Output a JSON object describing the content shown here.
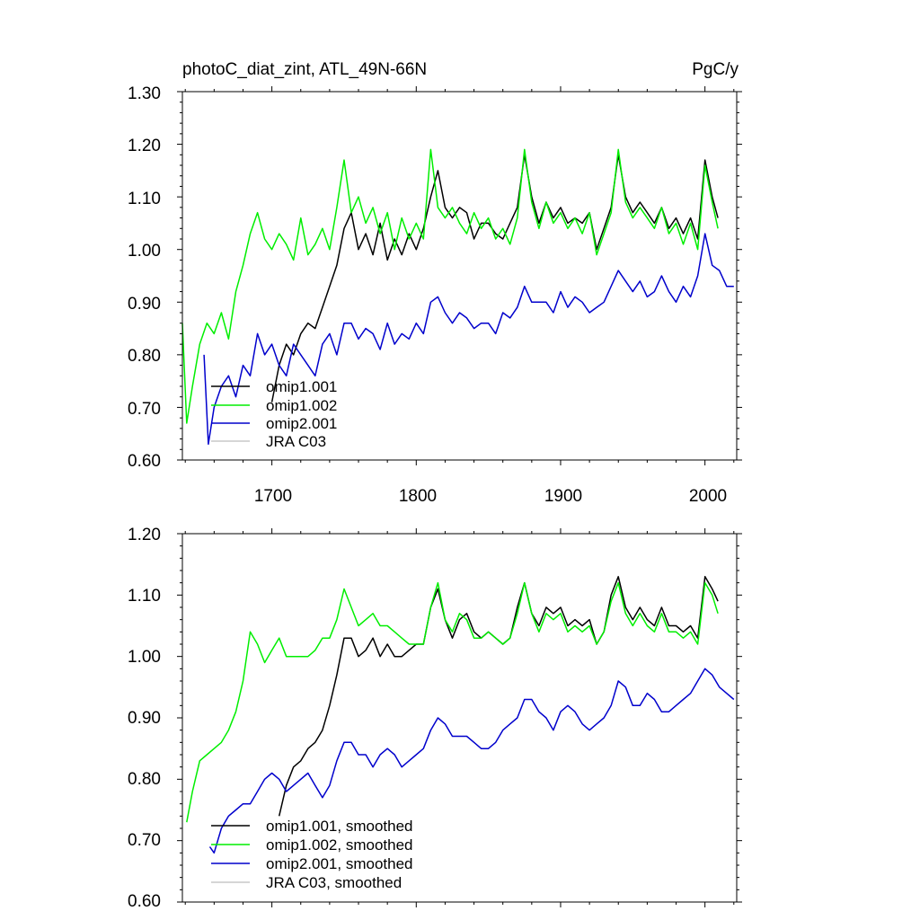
{
  "chart_data": [
    {
      "type": "line",
      "title": "photoC_diat_zint, ATL_49N-66N",
      "units": "PgC/y",
      "xlabel": "",
      "ylabel": "",
      "xlim": [
        1638,
        2022
      ],
      "ylim": [
        0.6,
        1.3
      ],
      "x_ticks": [
        1700,
        1800,
        1900,
        2000
      ],
      "x_tick_labels": [
        "1700",
        "1800",
        "1900",
        "2000"
      ],
      "y_ticks": [
        0.6,
        0.7,
        0.8,
        0.9,
        1.0,
        1.1,
        1.2,
        1.3
      ],
      "y_tick_labels": [
        "0.60",
        "0.70",
        "0.80",
        "0.90",
        "1.00",
        "1.10",
        "1.20",
        "1.30"
      ],
      "grid": false,
      "legend_position": "bottom-left",
      "series": [
        {
          "name": "omip1.001",
          "color": "#000000",
          "x": [
            1700,
            1705,
            1710,
            1715,
            1720,
            1725,
            1730,
            1735,
            1740,
            1745,
            1750,
            1755,
            1760,
            1765,
            1770,
            1775,
            1780,
            1785,
            1790,
            1795,
            1800,
            1805,
            1810,
            1815,
            1820,
            1825,
            1830,
            1835,
            1840,
            1845,
            1850,
            1855,
            1860,
            1865,
            1870,
            1875,
            1880,
            1885,
            1890,
            1895,
            1900,
            1905,
            1910,
            1915,
            1920,
            1925,
            1930,
            1935,
            1940,
            1945,
            1950,
            1955,
            1960,
            1965,
            1970,
            1975,
            1980,
            1985,
            1990,
            1995,
            2000,
            2005,
            2009
          ],
          "values": [
            0.71,
            0.78,
            0.82,
            0.8,
            0.84,
            0.86,
            0.85,
            0.89,
            0.93,
            0.97,
            1.04,
            1.07,
            1.0,
            1.03,
            0.99,
            1.05,
            0.98,
            1.02,
            0.99,
            1.03,
            1.0,
            1.04,
            1.1,
            1.15,
            1.08,
            1.06,
            1.08,
            1.07,
            1.02,
            1.05,
            1.05,
            1.03,
            1.02,
            1.05,
            1.08,
            1.18,
            1.1,
            1.05,
            1.09,
            1.06,
            1.08,
            1.05,
            1.06,
            1.05,
            1.07,
            1.0,
            1.04,
            1.08,
            1.18,
            1.1,
            1.07,
            1.09,
            1.07,
            1.05,
            1.08,
            1.04,
            1.06,
            1.03,
            1.06,
            1.02,
            1.17,
            1.1,
            1.06
          ]
        },
        {
          "name": "omip1.002",
          "color": "#00ee00",
          "x": [
            1638,
            1641,
            1645,
            1650,
            1655,
            1660,
            1665,
            1670,
            1675,
            1680,
            1685,
            1690,
            1695,
            1700,
            1705,
            1710,
            1715,
            1720,
            1725,
            1730,
            1735,
            1740,
            1745,
            1750,
            1755,
            1760,
            1765,
            1770,
            1775,
            1780,
            1785,
            1790,
            1795,
            1800,
            1805,
            1810,
            1815,
            1820,
            1825,
            1830,
            1835,
            1840,
            1845,
            1850,
            1855,
            1860,
            1865,
            1870,
            1875,
            1880,
            1885,
            1890,
            1895,
            1900,
            1905,
            1910,
            1915,
            1920,
            1925,
            1930,
            1935,
            1940,
            1945,
            1950,
            1955,
            1960,
            1965,
            1970,
            1975,
            1980,
            1985,
            1990,
            1995,
            2000,
            2005,
            2009
          ],
          "values": [
            0.86,
            0.67,
            0.74,
            0.82,
            0.86,
            0.84,
            0.88,
            0.83,
            0.92,
            0.97,
            1.03,
            1.07,
            1.02,
            1.0,
            1.03,
            1.01,
            0.98,
            1.06,
            0.99,
            1.01,
            1.04,
            1.0,
            1.08,
            1.17,
            1.07,
            1.1,
            1.05,
            1.08,
            1.03,
            1.07,
            1.0,
            1.06,
            1.02,
            1.05,
            1.02,
            1.19,
            1.08,
            1.06,
            1.08,
            1.05,
            1.03,
            1.07,
            1.04,
            1.06,
            1.02,
            1.04,
            1.01,
            1.06,
            1.19,
            1.09,
            1.04,
            1.09,
            1.05,
            1.07,
            1.04,
            1.06,
            1.03,
            1.07,
            0.99,
            1.03,
            1.07,
            1.19,
            1.09,
            1.06,
            1.08,
            1.06,
            1.04,
            1.08,
            1.03,
            1.05,
            1.01,
            1.05,
            1.0,
            1.16,
            1.09,
            1.04
          ]
        },
        {
          "name": "omip2.001",
          "color": "#0000cc",
          "x": [
            1653,
            1656,
            1660,
            1665,
            1670,
            1675,
            1680,
            1685,
            1690,
            1695,
            1700,
            1705,
            1710,
            1715,
            1720,
            1725,
            1730,
            1735,
            1740,
            1745,
            1750,
            1755,
            1760,
            1765,
            1770,
            1775,
            1780,
            1785,
            1790,
            1795,
            1800,
            1805,
            1810,
            1815,
            1820,
            1825,
            1830,
            1835,
            1840,
            1845,
            1850,
            1855,
            1860,
            1865,
            1870,
            1875,
            1880,
            1885,
            1890,
            1895,
            1900,
            1905,
            1910,
            1915,
            1920,
            1925,
            1930,
            1935,
            1940,
            1945,
            1950,
            1955,
            1960,
            1965,
            1970,
            1975,
            1980,
            1985,
            1990,
            1995,
            2000,
            2005,
            2010,
            2015,
            2020
          ],
          "values": [
            0.8,
            0.63,
            0.7,
            0.74,
            0.76,
            0.72,
            0.78,
            0.76,
            0.84,
            0.8,
            0.82,
            0.78,
            0.76,
            0.82,
            0.8,
            0.78,
            0.76,
            0.82,
            0.84,
            0.8,
            0.86,
            0.86,
            0.83,
            0.85,
            0.84,
            0.81,
            0.86,
            0.82,
            0.84,
            0.83,
            0.86,
            0.84,
            0.9,
            0.91,
            0.88,
            0.86,
            0.88,
            0.87,
            0.85,
            0.86,
            0.86,
            0.84,
            0.88,
            0.87,
            0.89,
            0.93,
            0.9,
            0.9,
            0.9,
            0.88,
            0.92,
            0.89,
            0.91,
            0.9,
            0.88,
            0.89,
            0.9,
            0.93,
            0.96,
            0.94,
            0.92,
            0.94,
            0.91,
            0.92,
            0.95,
            0.92,
            0.9,
            0.93,
            0.91,
            0.95,
            1.03,
            0.97,
            0.96,
            0.93,
            0.93
          ]
        },
        {
          "name": "JRA C03",
          "color": "#c8c8c8",
          "x": [],
          "values": []
        }
      ]
    },
    {
      "type": "line",
      "title": "",
      "xlabel": "",
      "ylabel": "",
      "xlim": [
        1638,
        2022
      ],
      "ylim": [
        0.6,
        1.2
      ],
      "x_ticks": [
        1700,
        1800,
        1900,
        2000
      ],
      "x_tick_labels": [],
      "y_ticks": [
        0.6,
        0.7,
        0.8,
        0.9,
        1.0,
        1.1,
        1.2
      ],
      "y_tick_labels": [
        "0.60",
        "0.70",
        "0.80",
        "0.90",
        "1.00",
        "1.10",
        "1.20"
      ],
      "grid": false,
      "legend_position": "bottom-left",
      "series": [
        {
          "name": "omip1.001, smoothed",
          "color": "#000000",
          "x": [
            1705,
            1710,
            1715,
            1720,
            1725,
            1730,
            1735,
            1740,
            1745,
            1750,
            1755,
            1760,
            1765,
            1770,
            1775,
            1780,
            1785,
            1790,
            1795,
            1800,
            1805,
            1810,
            1815,
            1820,
            1825,
            1830,
            1835,
            1840,
            1845,
            1850,
            1855,
            1860,
            1865,
            1870,
            1875,
            1880,
            1885,
            1890,
            1895,
            1900,
            1905,
            1910,
            1915,
            1920,
            1925,
            1930,
            1935,
            1940,
            1945,
            1950,
            1955,
            1960,
            1965,
            1970,
            1975,
            1980,
            1985,
            1990,
            1995,
            2000,
            2005,
            2009
          ],
          "values": [
            0.74,
            0.79,
            0.82,
            0.83,
            0.85,
            0.86,
            0.88,
            0.92,
            0.97,
            1.03,
            1.03,
            1.0,
            1.01,
            1.03,
            1.0,
            1.02,
            1.0,
            1.0,
            1.01,
            1.02,
            1.02,
            1.08,
            1.11,
            1.06,
            1.03,
            1.06,
            1.07,
            1.04,
            1.03,
            1.04,
            1.03,
            1.02,
            1.03,
            1.08,
            1.12,
            1.07,
            1.05,
            1.08,
            1.07,
            1.08,
            1.05,
            1.06,
            1.05,
            1.06,
            1.02,
            1.04,
            1.1,
            1.13,
            1.08,
            1.06,
            1.08,
            1.06,
            1.05,
            1.08,
            1.05,
            1.05,
            1.04,
            1.05,
            1.03,
            1.13,
            1.11,
            1.09
          ]
        },
        {
          "name": "omip1.002, smoothed",
          "color": "#00ee00",
          "x": [
            1641,
            1645,
            1650,
            1655,
            1660,
            1665,
            1670,
            1675,
            1680,
            1685,
            1690,
            1695,
            1700,
            1705,
            1710,
            1715,
            1720,
            1725,
            1730,
            1735,
            1740,
            1745,
            1750,
            1755,
            1760,
            1765,
            1770,
            1775,
            1780,
            1785,
            1790,
            1795,
            1800,
            1805,
            1810,
            1815,
            1820,
            1825,
            1830,
            1835,
            1840,
            1845,
            1850,
            1855,
            1860,
            1865,
            1870,
            1875,
            1880,
            1885,
            1890,
            1895,
            1900,
            1905,
            1910,
            1915,
            1920,
            1925,
            1930,
            1935,
            1940,
            1945,
            1950,
            1955,
            1960,
            1965,
            1970,
            1975,
            1980,
            1985,
            1990,
            1995,
            2000,
            2005,
            2009
          ],
          "values": [
            0.73,
            0.78,
            0.83,
            0.84,
            0.85,
            0.86,
            0.88,
            0.91,
            0.96,
            1.04,
            1.02,
            0.99,
            1.01,
            1.03,
            1.0,
            1.0,
            1.0,
            1.0,
            1.01,
            1.03,
            1.03,
            1.06,
            1.11,
            1.08,
            1.05,
            1.06,
            1.07,
            1.05,
            1.05,
            1.04,
            1.03,
            1.02,
            1.02,
            1.02,
            1.08,
            1.12,
            1.06,
            1.04,
            1.07,
            1.06,
            1.03,
            1.03,
            1.04,
            1.03,
            1.02,
            1.03,
            1.07,
            1.12,
            1.07,
            1.04,
            1.07,
            1.06,
            1.07,
            1.04,
            1.05,
            1.04,
            1.05,
            1.02,
            1.04,
            1.09,
            1.12,
            1.07,
            1.05,
            1.07,
            1.05,
            1.04,
            1.07,
            1.04,
            1.04,
            1.03,
            1.04,
            1.02,
            1.12,
            1.1,
            1.07
          ]
        },
        {
          "name": "omip2.001, smoothed",
          "color": "#0000cc",
          "x": [
            1657,
            1660,
            1665,
            1670,
            1675,
            1680,
            1685,
            1690,
            1695,
            1700,
            1705,
            1710,
            1715,
            1720,
            1725,
            1730,
            1735,
            1740,
            1745,
            1750,
            1755,
            1760,
            1765,
            1770,
            1775,
            1780,
            1785,
            1790,
            1795,
            1800,
            1805,
            1810,
            1815,
            1820,
            1825,
            1830,
            1835,
            1840,
            1845,
            1850,
            1855,
            1860,
            1865,
            1870,
            1875,
            1880,
            1885,
            1890,
            1895,
            1900,
            1905,
            1910,
            1915,
            1920,
            1925,
            1930,
            1935,
            1940,
            1945,
            1950,
            1955,
            1960,
            1965,
            1970,
            1975,
            1980,
            1985,
            1990,
            1995,
            2000,
            2005,
            2010,
            2015,
            2020
          ],
          "values": [
            0.69,
            0.68,
            0.72,
            0.74,
            0.75,
            0.76,
            0.76,
            0.78,
            0.8,
            0.81,
            0.8,
            0.78,
            0.79,
            0.8,
            0.81,
            0.79,
            0.77,
            0.79,
            0.83,
            0.86,
            0.86,
            0.84,
            0.84,
            0.82,
            0.84,
            0.85,
            0.84,
            0.82,
            0.83,
            0.84,
            0.85,
            0.88,
            0.9,
            0.89,
            0.87,
            0.87,
            0.87,
            0.86,
            0.85,
            0.85,
            0.86,
            0.88,
            0.89,
            0.9,
            0.93,
            0.93,
            0.91,
            0.9,
            0.88,
            0.91,
            0.92,
            0.91,
            0.89,
            0.88,
            0.89,
            0.9,
            0.92,
            0.96,
            0.95,
            0.92,
            0.92,
            0.94,
            0.93,
            0.91,
            0.91,
            0.92,
            0.93,
            0.94,
            0.96,
            0.98,
            0.97,
            0.95,
            0.94,
            0.93
          ]
        },
        {
          "name": "JRA C03, smoothed",
          "color": "#c8c8c8",
          "x": [],
          "values": []
        }
      ]
    }
  ]
}
